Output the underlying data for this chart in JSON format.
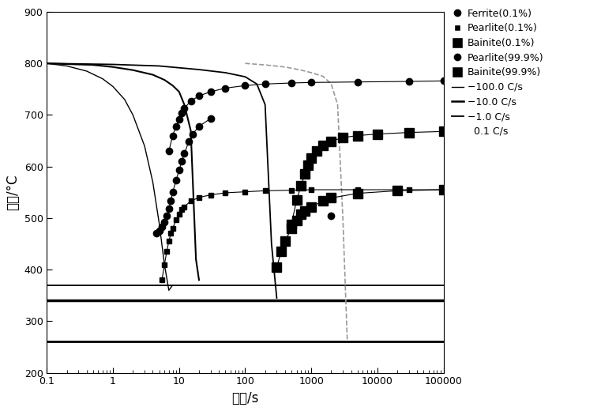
{
  "xlabel": "时间/s",
  "ylabel": "温度/°C",
  "xlim": [
    0.1,
    100000
  ],
  "ylim": [
    200,
    900
  ],
  "yticks": [
    200,
    300,
    400,
    500,
    600,
    700,
    800,
    900
  ],
  "background_color": "#ffffff",
  "cool100_x": [
    0.1,
    0.2,
    0.4,
    0.7,
    1.0,
    1.5,
    2.0,
    3.0,
    4.0,
    5.0,
    6.0,
    7.0,
    8.0
  ],
  "cool100_y": [
    800,
    795,
    785,
    770,
    755,
    730,
    700,
    640,
    570,
    490,
    410,
    360,
    370
  ],
  "cool10_x": [
    0.1,
    0.5,
    1.0,
    2.0,
    4.0,
    6.0,
    8.0,
    10.0,
    12.0,
    15.0,
    18.0,
    20.0
  ],
  "cool10_y": [
    800,
    797,
    793,
    787,
    778,
    768,
    757,
    745,
    720,
    670,
    420,
    380
  ],
  "cool1_x": [
    0.1,
    1.0,
    5.0,
    20.0,
    50.0,
    100.0,
    150.0,
    200.0,
    250.0,
    300.0
  ],
  "cool1_y": [
    800,
    798,
    795,
    788,
    782,
    774,
    760,
    720,
    450,
    345
  ],
  "cool01_x": [
    100.0,
    200.0,
    400.0,
    700.0,
    1000.0,
    1500.0,
    2000.0,
    2500.0,
    3000.0,
    3500.0
  ],
  "cool01_y": [
    800,
    797,
    793,
    787,
    782,
    775,
    760,
    720,
    500,
    262
  ],
  "horiz_lines": [
    {
      "y": 370,
      "lw": 1.3
    },
    {
      "y": 340,
      "lw": 2.5
    },
    {
      "y": 260,
      "lw": 2.0
    }
  ],
  "ferrite01_x": [
    4.5,
    5.0,
    5.5,
    6.0,
    6.5,
    7.0,
    7.5,
    8.0,
    9.0,
    10.0,
    11.0,
    12.0,
    14.0,
    16.0,
    20.0,
    30.0
  ],
  "ferrite01_y": [
    470,
    475,
    483,
    492,
    504,
    518,
    534,
    550,
    573,
    593,
    610,
    625,
    648,
    663,
    678,
    693
  ],
  "pearl01_x": [
    5.5,
    6.0,
    6.5,
    7.0,
    7.5,
    8.0,
    9.0,
    10.0,
    11.0,
    12.0,
    15.0,
    20.0,
    30.0,
    50.0,
    100.0,
    200.0,
    500.0,
    1000.0,
    5000.0,
    30000.0,
    100000.0
  ],
  "pearl01_y": [
    380,
    410,
    435,
    455,
    470,
    480,
    497,
    508,
    516,
    522,
    533,
    540,
    545,
    549,
    551,
    553,
    554,
    555,
    555,
    555,
    555
  ],
  "bainite01_x": [
    300.0,
    350.0,
    400.0,
    500.0,
    600.0,
    700.0,
    800.0,
    1000.0,
    1500.0,
    2000.0,
    5000.0,
    20000.0,
    100000.0
  ],
  "bainite01_y": [
    405,
    435,
    455,
    480,
    496,
    507,
    514,
    522,
    533,
    539,
    548,
    553,
    555
  ],
  "pearl999_x": [
    7.0,
    8.0,
    9.0,
    10.0,
    11.0,
    12.0,
    15.0,
    20.0,
    30.0,
    50.0,
    100.0,
    200.0,
    500.0,
    1000.0,
    5000.0,
    30000.0,
    100000.0
  ],
  "pearl999_y": [
    630,
    660,
    678,
    692,
    704,
    713,
    727,
    737,
    745,
    752,
    757,
    760,
    762,
    763,
    764,
    765,
    766
  ],
  "bainite999_x": [
    500.0,
    600.0,
    700.0,
    800.0,
    900.0,
    1000.0,
    1200.0,
    1500.0,
    2000.0,
    3000.0,
    5000.0,
    10000.0,
    30000.0,
    100000.0
  ],
  "bainite999_y": [
    488,
    535,
    563,
    585,
    603,
    617,
    630,
    641,
    649,
    656,
    660,
    663,
    666,
    668
  ],
  "extra_pt_x": [
    2000.0
  ],
  "extra_pt_y": [
    505
  ]
}
